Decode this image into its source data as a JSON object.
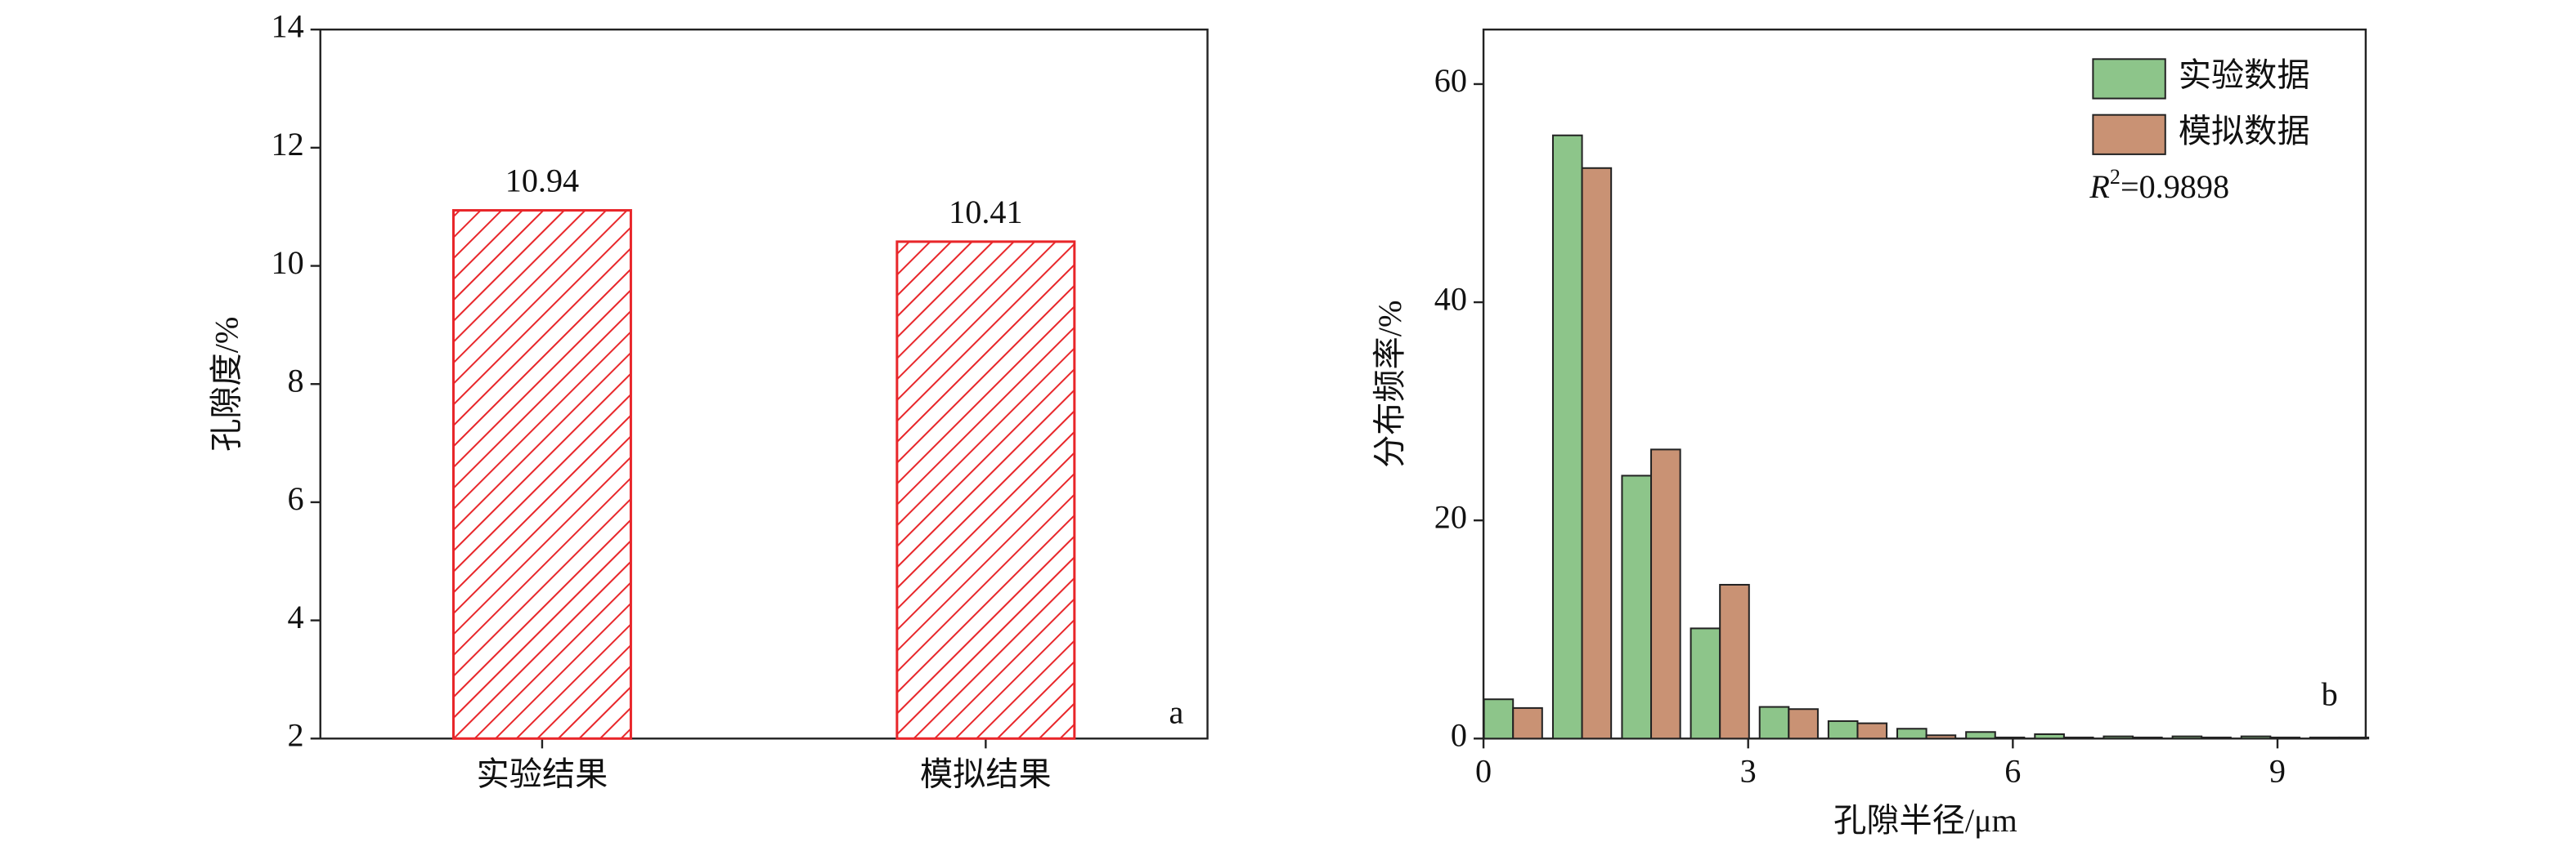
{
  "chart_data": [
    {
      "type": "bar",
      "panel_label": "a",
      "ylabel": "孔隙度/%",
      "categories": [
        "实验结果",
        "模拟结果"
      ],
      "values": [
        10.94,
        10.41
      ],
      "color": "#e8262a",
      "hatch": true,
      "ylim": [
        2,
        14
      ],
      "yticks": [
        2,
        4,
        6,
        8,
        10,
        12,
        14
      ],
      "value_labels_shown": true
    },
    {
      "type": "bar",
      "panel_label": "b",
      "ylabel": "分布频率/%",
      "xlabel": "孔隙半径/μm",
      "x": [
        0.335,
        1.117,
        1.9,
        2.68,
        3.46,
        4.24,
        5.02,
        5.8,
        6.58,
        7.36,
        8.14,
        8.92,
        9.7
      ],
      "series": [
        {
          "name": "实验数据",
          "color": "#8dc58a",
          "values": [
            3.6,
            55.3,
            24.1,
            10.1,
            2.9,
            1.6,
            0.9,
            0.6,
            0.4,
            0.2,
            0.2,
            0.2,
            0.1
          ]
        },
        {
          "name": "模拟数据",
          "color": "#c99274",
          "values": [
            2.8,
            52.3,
            26.5,
            14.1,
            2.7,
            1.4,
            0.3,
            0.1,
            0.1,
            0.1,
            0.1,
            0.1,
            0.1
          ]
        }
      ],
      "annotation": {
        "variable": "R",
        "exponent": "2",
        "text": "=0.9898"
      },
      "xlim": [
        0,
        10
      ],
      "xticks": [
        0,
        3,
        6,
        9
      ],
      "ylim": [
        0,
        65
      ],
      "yticks": [
        0,
        20,
        40,
        60
      ],
      "legend": "upper right"
    }
  ]
}
